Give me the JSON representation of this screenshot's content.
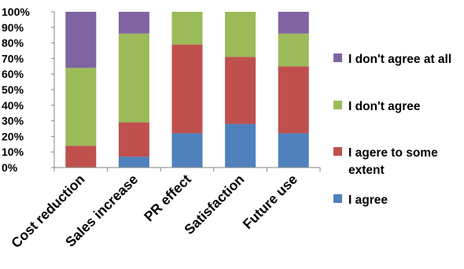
{
  "chart_data": {
    "type": "bar",
    "stacked": true,
    "normalized": true,
    "categories": [
      "Cost reduction",
      "Sales increase",
      "PR effect",
      "Satisfaction",
      "Future use"
    ],
    "series": [
      {
        "name": "I agree",
        "color": "#4F81BD",
        "values": [
          0,
          7,
          22,
          28,
          22
        ]
      },
      {
        "name": "I agere to some extent",
        "color": "#C0504D",
        "values": [
          14,
          22,
          57,
          43,
          43
        ]
      },
      {
        "name": "I don't agree",
        "color": "#9BBB59",
        "values": [
          50,
          57,
          21,
          29,
          21
        ]
      },
      {
        "name": "I don't agree at all",
        "color": "#8064A2",
        "values": [
          36,
          14,
          0,
          0,
          14
        ]
      }
    ],
    "y_ticks": [
      "0%",
      "10%",
      "20%",
      "30%",
      "40%",
      "50%",
      "60%",
      "70%",
      "80%",
      "90%",
      "100%"
    ],
    "ylim": [
      0,
      100
    ],
    "y_unit": "%",
    "grid": false,
    "legend": {
      "position": "right",
      "order": [
        "I don't agree at all",
        "I don't agree",
        "I agere to some extent",
        "I agree"
      ]
    },
    "axis_color": "#868686"
  }
}
